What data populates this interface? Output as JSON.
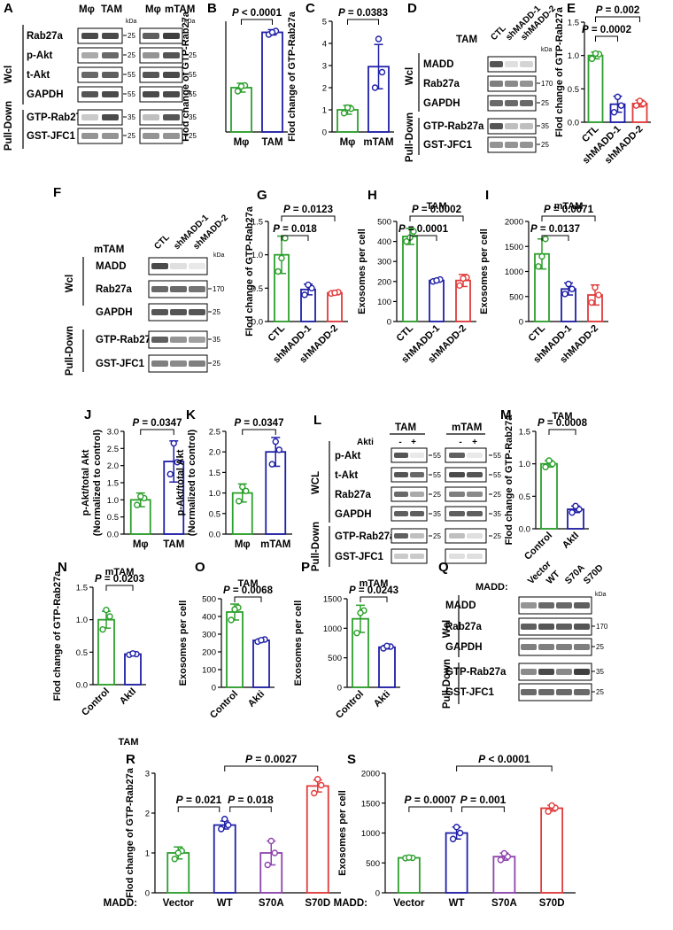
{
  "colors": {
    "green": "#2ca02c",
    "blue": "#1f1fa8",
    "red": "#e23b3b",
    "purple": "#8e44ad",
    "darkgreen": "#1a8a1a",
    "band": "#2a2a2a"
  },
  "blots": [
    {
      "panel": "A",
      "groups": [
        {
          "header": [
            "Mφ",
            "TAM"
          ]
        },
        {
          "header": [
            "Mφ",
            "mTAM"
          ]
        }
      ],
      "rows": [
        "Rab27a",
        "p-Akt",
        "t-Akt",
        "GAPDH",
        "GTP-Rab27a",
        "GST-JFC1"
      ],
      "markers_left": [
        "kDa",
        "25",
        "55",
        "55",
        "35",
        "25"
      ],
      "markers_right": [
        "kDa",
        "25",
        "55",
        "55",
        "35",
        "25"
      ],
      "side": [
        "Wcl",
        "Pull-Down"
      ]
    },
    {
      "panel": "D",
      "cols": [
        "CTL",
        "shMADD-1",
        "shMADD-2"
      ],
      "lane_label": "TAM",
      "rows": [
        "MADD",
        "Rab27a",
        "GAPDH",
        "GTP-Rab27a",
        "GST-JFC1"
      ],
      "markers": [
        "kDa",
        "170",
        "25",
        "35",
        "25"
      ],
      "side": [
        "Wcl",
        "Pull-Down"
      ]
    },
    {
      "panel": "F",
      "cols": [
        "CTL",
        "shMADD-1",
        "shMADD-2"
      ],
      "lane_label": "mTAM",
      "rows": [
        "MADD",
        "Rab27a",
        "GAPDH",
        "GTP-Rab27a",
        "GST-JFC1"
      ],
      "markers": [
        "kDa",
        "170",
        "25",
        "35",
        "25"
      ],
      "side": [
        "Wcl",
        "Pull-Down"
      ]
    },
    {
      "panel": "L",
      "groups": [
        "TAM",
        "mTAM"
      ],
      "treat_label": "Akti",
      "treat": [
        "-",
        "+",
        "-",
        "+"
      ],
      "rows": [
        "p-Akt",
        "t-Akt",
        "Rab27a",
        "GAPDH",
        "GTP-Rab27a",
        "GST-JFC1"
      ],
      "markers_mid": [
        "55",
        "55",
        "25",
        "35",
        "25"
      ],
      "markers_right": [
        "55",
        "55",
        "25",
        "35",
        "25"
      ],
      "side": [
        "WCL",
        "Pull-Down"
      ]
    },
    {
      "panel": "Q",
      "cols_label": "MADD:",
      "cols": [
        "Vector",
        "WT",
        "S70A",
        "S70D"
      ],
      "rows": [
        "MADD",
        "Rab27a",
        "GAPDH",
        "GTP-Rab27a",
        "GST-JFC1"
      ],
      "markers": [
        "kDa",
        "170",
        "25",
        "35",
        "25"
      ],
      "side": [
        "Wcl",
        "Pull-Down"
      ]
    }
  ],
  "chart_data": [
    {
      "panel": "B",
      "type": "bar",
      "ylabel": "Flod change of GTP-Rab27a",
      "categories": [
        "Mφ",
        "TAM"
      ],
      "values": [
        1.0,
        2.25
      ],
      "errors": [
        0.1,
        0.06
      ],
      "points": [
        [
          0.92,
          1.05,
          1.03
        ],
        [
          2.2,
          2.28,
          2.25
        ]
      ],
      "colors": [
        "green",
        "blue"
      ],
      "ylim": [
        0,
        2.5
      ],
      "yticks": [],
      "sig": [
        {
          "a": 0,
          "b": 1,
          "label": "P < 0.0001"
        }
      ]
    },
    {
      "panel": "C",
      "type": "bar",
      "ylabel": "Flod change of GTP-Rab27a",
      "categories": [
        "Mφ",
        "mTAM"
      ],
      "values": [
        1.0,
        2.95
      ],
      "errors": [
        0.2,
        1.0
      ],
      "points": [
        [
          0.85,
          1.05,
          1.1
        ],
        [
          2.0,
          2.7,
          4.2
        ]
      ],
      "colors": [
        "green",
        "blue"
      ],
      "ylim": [
        0,
        5
      ],
      "yticks": [
        0,
        1,
        2,
        3,
        4,
        5
      ],
      "sig": [
        {
          "a": 0,
          "b": 1,
          "label": "P = 0.0383"
        }
      ]
    },
    {
      "panel": "E",
      "type": "bar",
      "ylabel": "Flod change of GTP-Rab27a",
      "categories": [
        "CTL",
        "shMADD-1",
        "shMADD-2"
      ],
      "values": [
        1.0,
        0.27,
        0.28
      ],
      "errors": [
        0.05,
        0.12,
        0.05
      ],
      "points": [
        [
          0.95,
          1.02,
          1.03
        ],
        [
          0.15,
          0.25,
          0.38
        ],
        [
          0.25,
          0.28,
          0.32
        ]
      ],
      "colors": [
        "green",
        "blue",
        "red"
      ],
      "ylim": [
        0,
        1.5
      ],
      "yticks": [
        0,
        0.5,
        1.0,
        1.5
      ],
      "rot": true,
      "sig": [
        {
          "a": 0,
          "b": 1,
          "label": "P = 0.0002"
        },
        {
          "a": 0,
          "b": 2,
          "label": "P = 0.002"
        }
      ]
    },
    {
      "panel": "G",
      "type": "bar",
      "ylabel": "Flod change of GTP-Rab27a",
      "categories": [
        "CTL",
        "shMADD-1",
        "shMADD-2"
      ],
      "values": [
        1.0,
        0.48,
        0.43
      ],
      "errors": [
        0.28,
        0.08,
        0.03
      ],
      "points": [
        [
          0.75,
          1.25,
          0.95
        ],
        [
          0.4,
          0.5,
          0.55
        ],
        [
          0.42,
          0.44,
          0.43
        ]
      ],
      "colors": [
        "green",
        "blue",
        "red"
      ],
      "ylim": [
        0,
        1.5
      ],
      "yticks": [
        0,
        0.5,
        1.0,
        1.5
      ],
      "rot": true,
      "sig": [
        {
          "a": 0,
          "b": 1,
          "label": "P = 0.018"
        },
        {
          "a": 0,
          "b": 2,
          "label": "P = 0.0123"
        }
      ]
    },
    {
      "panel": "H",
      "type": "bar",
      "title": "TAM",
      "ylabel": "Exosomes per cell",
      "categories": [
        "CTL",
        "shMADD-1",
        "shMADD-2"
      ],
      "values": [
        425,
        205,
        205
      ],
      "errors": [
        40,
        8,
        30
      ],
      "points": [
        [
          400,
          450,
          420
        ],
        [
          200,
          210,
          205
        ],
        [
          180,
          220,
          215
        ]
      ],
      "colors": [
        "green",
        "blue",
        "red"
      ],
      "ylim": [
        0,
        500
      ],
      "yticks": [
        0,
        100,
        200,
        300,
        400,
        500
      ],
      "rot": true,
      "sig": [
        {
          "a": 0,
          "b": 1,
          "label": "P = 0.0001"
        },
        {
          "a": 0,
          "b": 2,
          "label": "P = 0.0002"
        }
      ]
    },
    {
      "panel": "I",
      "type": "bar",
      "title": "mTAM",
      "ylabel": "Exosomes per cell",
      "categories": [
        "CTL",
        "shMADD-1",
        "shMADD-2"
      ],
      "values": [
        1350,
        650,
        530
      ],
      "errors": [
        300,
        120,
        200
      ],
      "points": [
        [
          1100,
          1650,
          1300
        ],
        [
          550,
          650,
          750
        ],
        [
          380,
          530,
          680
        ]
      ],
      "colors": [
        "green",
        "blue",
        "red"
      ],
      "ylim": [
        0,
        2000
      ],
      "yticks": [
        0,
        500,
        1000,
        1500,
        2000
      ],
      "rot": true,
      "sig": [
        {
          "a": 0,
          "b": 1,
          "label": "P = 0.0137"
        },
        {
          "a": 0,
          "b": 2,
          "label": "P = 0.0071"
        }
      ]
    },
    {
      "panel": "J",
      "type": "bar",
      "ylabel": "p-Akt/total Akt",
      "ylabel2": "(Normalized to control)",
      "categories": [
        "Mφ",
        "TAM"
      ],
      "values": [
        1.0,
        2.12
      ],
      "errors": [
        0.2,
        0.6
      ],
      "points": [
        [
          0.85,
          1.05,
          1.1
        ],
        [
          1.75,
          2.1,
          2.65
        ]
      ],
      "colors": [
        "green",
        "blue"
      ],
      "ylim": [
        0,
        3
      ],
      "yticks": [
        0,
        0.5,
        1.0,
        1.5,
        2.0,
        2.5,
        3.0
      ],
      "sig": [
        {
          "a": 0,
          "b": 1,
          "label": "P = 0.0347"
        }
      ]
    },
    {
      "panel": "K",
      "type": "bar",
      "ylabel": "p-Akt/total Akt",
      "ylabel2": "(Normalized to control)",
      "categories": [
        "Mφ",
        "mTAM"
      ],
      "values": [
        1.0,
        2.0
      ],
      "errors": [
        0.22,
        0.35
      ],
      "points": [
        [
          0.8,
          1.05,
          1.15
        ],
        [
          1.7,
          2.05,
          2.25
        ]
      ],
      "colors": [
        "green",
        "blue"
      ],
      "ylim": [
        0,
        2.5
      ],
      "yticks": [
        0,
        0.5,
        1.0,
        1.5,
        2.0,
        2.5
      ],
      "sig": [
        {
          "a": 0,
          "b": 1,
          "label": "P = 0.0347"
        }
      ]
    },
    {
      "panel": "M",
      "type": "bar",
      "title": "TAM",
      "ylabel": "Flod change of GTP-Rab27a",
      "categories": [
        "Control",
        "AktI"
      ],
      "values": [
        1.0,
        0.3
      ],
      "errors": [
        0.05,
        0.05
      ],
      "points": [
        [
          0.95,
          1.0,
          1.05
        ],
        [
          0.25,
          0.3,
          0.35
        ]
      ],
      "colors": [
        "green",
        "blue"
      ],
      "ylim": [
        0,
        1.5
      ],
      "yticks": [
        0,
        0.5,
        1.0,
        1.5
      ],
      "rot": true,
      "sig": [
        {
          "a": 0,
          "b": 1,
          "label": "P = 0.0008"
        }
      ]
    },
    {
      "panel": "N",
      "type": "bar",
      "title": "mTAM",
      "ylabel": "Flod change of GTP-Rab27a",
      "categories": [
        "Control",
        "AktI"
      ],
      "values": [
        1.0,
        0.47
      ],
      "errors": [
        0.13,
        0.02
      ],
      "points": [
        [
          0.85,
          1.05,
          1.15
        ],
        [
          0.46,
          0.47,
          0.48
        ]
      ],
      "colors": [
        "green",
        "blue"
      ],
      "ylim": [
        0,
        1.5
      ],
      "yticks": [
        0,
        0.5,
        1.0,
        1.5
      ],
      "rot": true,
      "footer": "TAM",
      "sig": [
        {
          "a": 0,
          "b": 1,
          "label": "P = 0.0203"
        }
      ]
    },
    {
      "panel": "O",
      "type": "bar",
      "title": "TAM",
      "ylabel": "Exosomes per cell",
      "categories": [
        "Control",
        "Akti"
      ],
      "values": [
        425,
        265
      ],
      "errors": [
        45,
        8
      ],
      "points": [
        [
          380,
          450,
          440
        ],
        [
          258,
          270,
          266
        ]
      ],
      "colors": [
        "green",
        "blue"
      ],
      "ylim": [
        0,
        500
      ],
      "yticks": [
        0,
        100,
        200,
        300,
        400,
        500
      ],
      "rot": true,
      "sig": [
        {
          "a": 0,
          "b": 1,
          "label": "P = 0.0068"
        }
      ]
    },
    {
      "panel": "P",
      "type": "bar",
      "title": "mTAM",
      "ylabel": "Exosomes per cell",
      "categories": [
        "Control",
        "Akti"
      ],
      "values": [
        1160,
        680
      ],
      "errors": [
        230,
        30
      ],
      "points": [
        [
          920,
          1300,
          1260
        ],
        [
          660,
          690,
          700
        ]
      ],
      "colors": [
        "green",
        "blue"
      ],
      "ylim": [
        0,
        1500
      ],
      "yticks": [
        0,
        500,
        1000,
        1500
      ],
      "rot": true,
      "sig": [
        {
          "a": 0,
          "b": 1,
          "label": "P = 0.0243"
        }
      ]
    },
    {
      "panel": "R",
      "type": "bar",
      "ylabel": "Flod change of GTP-Rab27a",
      "xprefix": "MADD:",
      "categories": [
        "Vector",
        "WT",
        "S70A",
        "S70D"
      ],
      "values": [
        1.0,
        1.7,
        1.0,
        2.68
      ],
      "errors": [
        0.15,
        0.1,
        0.3,
        0.15
      ],
      "points": [
        [
          0.85,
          1.05,
          1.0
        ],
        [
          1.6,
          1.7,
          1.85
        ],
        [
          0.7,
          1.0,
          1.3
        ],
        [
          2.5,
          2.7,
          2.85
        ]
      ],
      "colors": [
        "green",
        "blue",
        "purple",
        "red"
      ],
      "ylim": [
        0,
        3
      ],
      "yticks": [
        0,
        1,
        2,
        3
      ],
      "sig": [
        {
          "a": 0,
          "b": 1,
          "label": "P = 0.021"
        },
        {
          "a": 1,
          "b": 2,
          "label": "P = 0.018"
        },
        {
          "a": 1,
          "b": 3,
          "label": "P = 0.0027"
        }
      ]
    },
    {
      "panel": "S",
      "type": "bar",
      "ylabel": "Exosomes per cell",
      "xprefix": "MADD:",
      "categories": [
        "Vector",
        "WT",
        "S70A",
        "S70D"
      ],
      "values": [
        585,
        1000,
        605,
        1415
      ],
      "errors": [
        10,
        100,
        60,
        50
      ],
      "points": [
        [
          580,
          585,
          590
        ],
        [
          900,
          1000,
          1100
        ],
        [
          550,
          605,
          660
        ],
        [
          1360,
          1420,
          1460
        ]
      ],
      "colors": [
        "green",
        "blue",
        "purple",
        "red"
      ],
      "ylim": [
        0,
        2000
      ],
      "yticks": [
        0,
        500,
        1000,
        1500,
        2000
      ],
      "sig": [
        {
          "a": 0,
          "b": 1,
          "label": "P = 0.0007"
        },
        {
          "a": 1,
          "b": 2,
          "label": "P = 0.001"
        },
        {
          "a": 1,
          "b": 3,
          "label": "P < 0.0001"
        }
      ]
    }
  ]
}
